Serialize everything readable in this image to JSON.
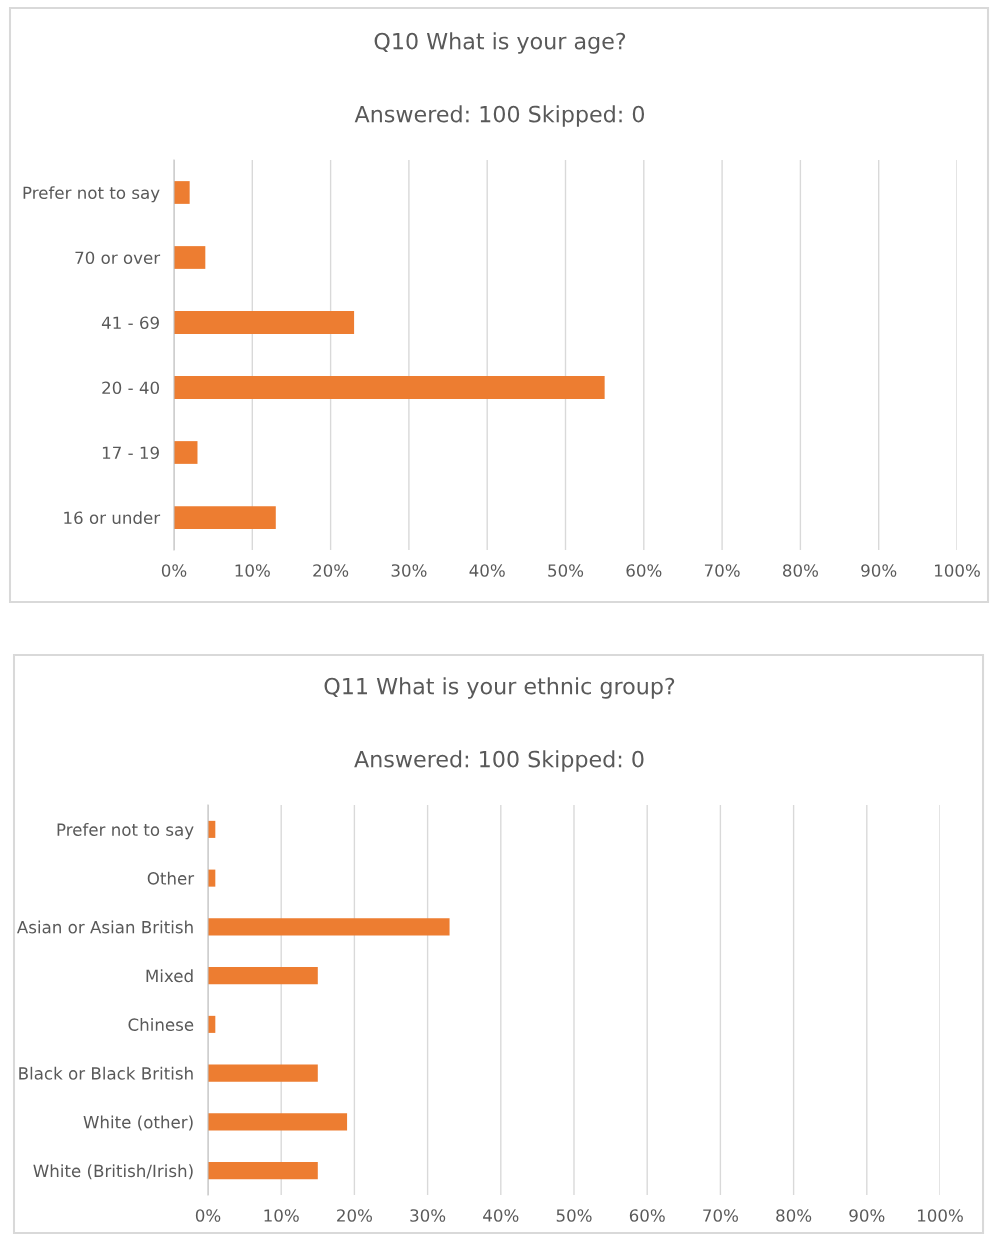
{
  "chart_data": [
    {
      "type": "bar",
      "orientation": "horizontal",
      "title": "Q10 What is your age?",
      "subtitle": "Answered: 100 Skipped: 0",
      "categories": [
        "Prefer not to say",
        "70 or over",
        "41 - 69",
        "20 - 40",
        "17 - 19",
        "16 or under"
      ],
      "values": [
        2,
        4,
        23,
        55,
        3,
        13
      ],
      "color": "#ed7d31",
      "xlim": [
        0,
        100
      ],
      "xticks": [
        {
          "value": 0,
          "label": "0%"
        },
        {
          "value": 10,
          "label": "10%"
        },
        {
          "value": 20,
          "label": "20%"
        },
        {
          "value": 30,
          "label": "30%"
        },
        {
          "value": 40,
          "label": "40%"
        },
        {
          "value": 50,
          "label": "50%"
        },
        {
          "value": 60,
          "label": "60%"
        },
        {
          "value": 70,
          "label": "70%"
        },
        {
          "value": 80,
          "label": "80%"
        },
        {
          "value": 90,
          "label": "90%"
        },
        {
          "value": 100,
          "label": "100%"
        }
      ],
      "grid": "x"
    },
    {
      "type": "bar",
      "orientation": "horizontal",
      "title": "Q11 What is your ethnic group?",
      "subtitle": "Answered: 100 Skipped: 0",
      "categories": [
        "Prefer not to say",
        "Other",
        "Asian or Asian British",
        "Mixed",
        "Chinese",
        "Black or Black British",
        "White (other)",
        "White (British/Irish)"
      ],
      "values": [
        1,
        1,
        33,
        15,
        1,
        15,
        19,
        15
      ],
      "color": "#ed7d31",
      "xlim": [
        0,
        100
      ],
      "xticks": [
        {
          "value": 0,
          "label": "0%"
        },
        {
          "value": 10,
          "label": "10%"
        },
        {
          "value": 20,
          "label": "20%"
        },
        {
          "value": 30,
          "label": "30%"
        },
        {
          "value": 40,
          "label": "40%"
        },
        {
          "value": 50,
          "label": "50%"
        },
        {
          "value": 60,
          "label": "60%"
        },
        {
          "value": 70,
          "label": "70%"
        },
        {
          "value": 80,
          "label": "80%"
        },
        {
          "value": 90,
          "label": "90%"
        },
        {
          "value": 100,
          "label": "100%"
        }
      ],
      "grid": "x"
    }
  ]
}
